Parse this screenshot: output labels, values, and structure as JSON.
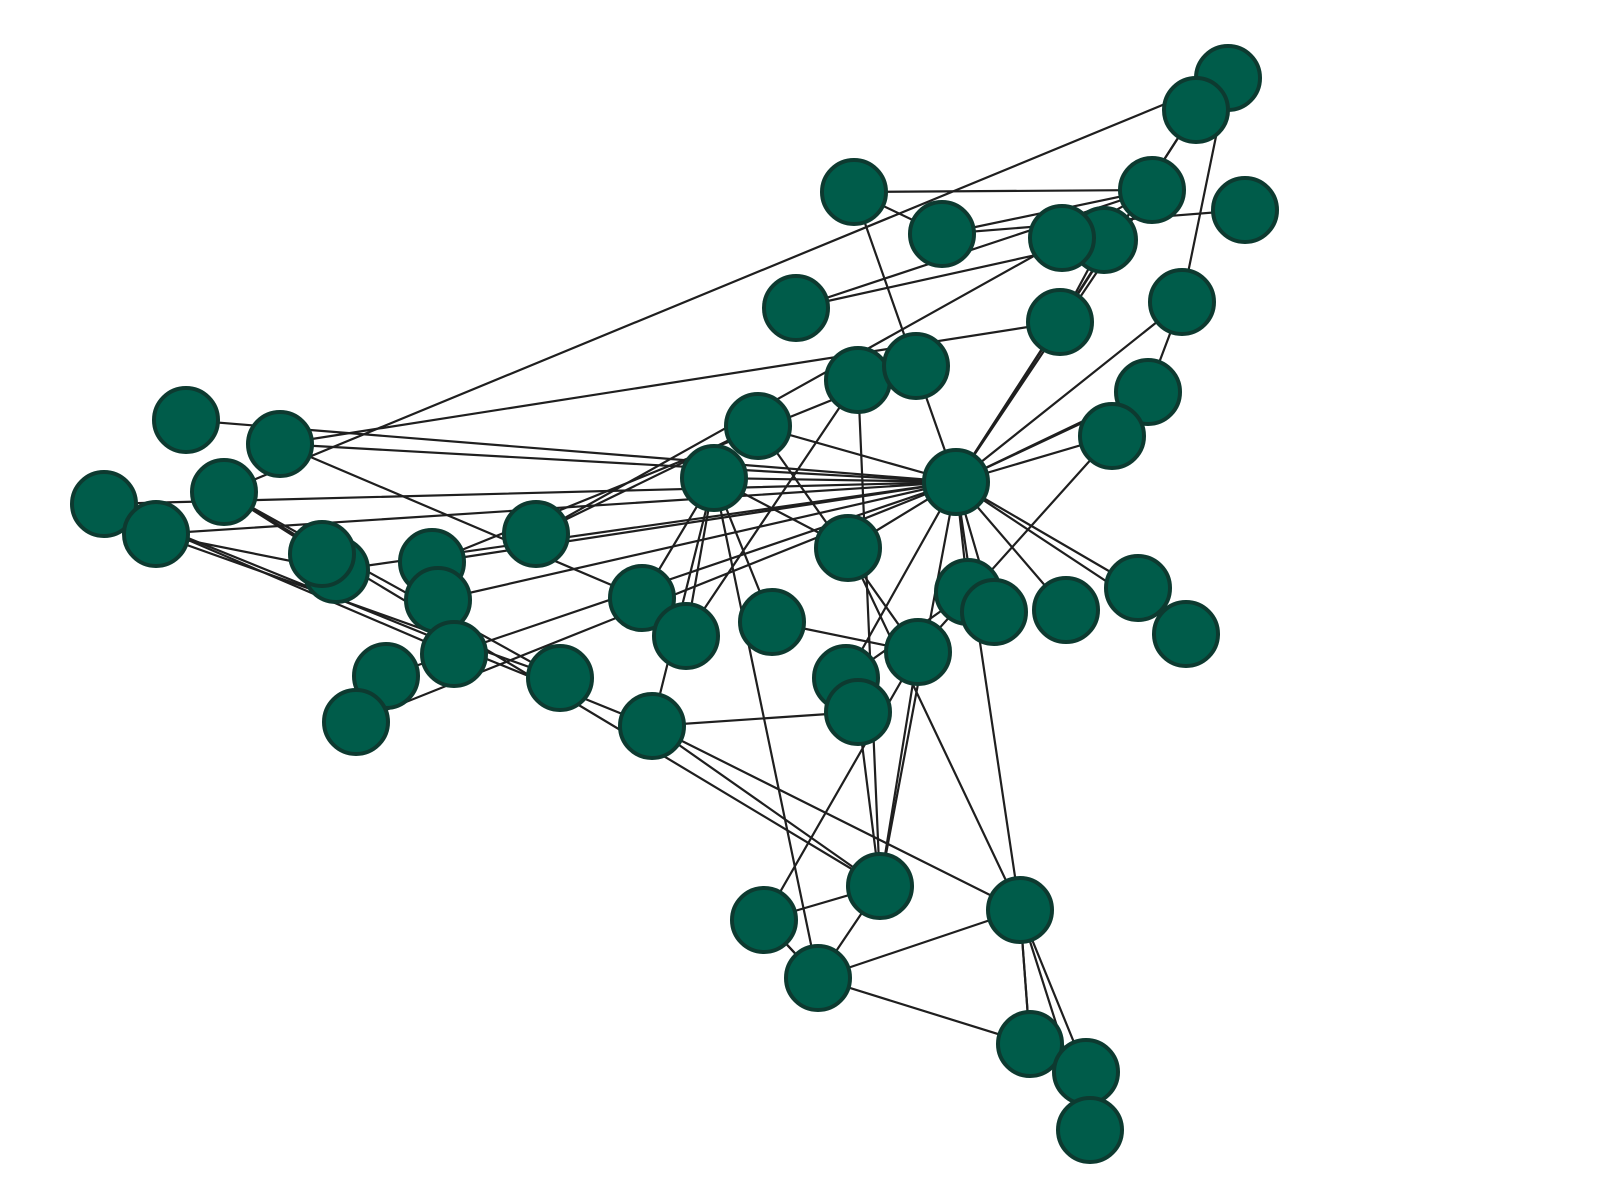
{
  "graph": {
    "style": {
      "background": "#ffffff",
      "node_fill": "#005c4a",
      "node_stroke": "#0d3a30",
      "edge_color": "#1f1f1f"
    },
    "nodes": [
      {
        "id": "n1"
      },
      {
        "id": "n2"
      },
      {
        "id": "n3"
      },
      {
        "id": "n4"
      },
      {
        "id": "n5"
      },
      {
        "id": "n6"
      },
      {
        "id": "n7"
      },
      {
        "id": "n8"
      },
      {
        "id": "n9"
      },
      {
        "id": "n10"
      },
      {
        "id": "n11"
      },
      {
        "id": "n12"
      },
      {
        "id": "n13"
      },
      {
        "id": "n14"
      },
      {
        "id": "n15"
      },
      {
        "id": "n16"
      },
      {
        "id": "n17"
      },
      {
        "id": "n18"
      },
      {
        "id": "n19"
      },
      {
        "id": "n20"
      },
      {
        "id": "n21"
      },
      {
        "id": "n22"
      },
      {
        "id": "n23"
      },
      {
        "id": "n24"
      },
      {
        "id": "n25"
      },
      {
        "id": "n26"
      },
      {
        "id": "n27"
      },
      {
        "id": "n28"
      },
      {
        "id": "n29"
      },
      {
        "id": "n30"
      },
      {
        "id": "n31"
      },
      {
        "id": "n32"
      },
      {
        "id": "n33"
      },
      {
        "id": "n34"
      },
      {
        "id": "n35"
      },
      {
        "id": "n36"
      },
      {
        "id": "n37"
      },
      {
        "id": "n38"
      },
      {
        "id": "n39"
      },
      {
        "id": "n40"
      },
      {
        "id": "n41"
      },
      {
        "id": "n42"
      },
      {
        "id": "n43"
      },
      {
        "id": "n44"
      },
      {
        "id": "n45"
      },
      {
        "id": "n46"
      },
      {
        "id": "n47"
      },
      {
        "id": "n48"
      },
      {
        "id": "n49"
      },
      {
        "id": "n50"
      },
      {
        "id": "n51"
      },
      {
        "id": "n52"
      },
      {
        "id": "n53"
      },
      {
        "id": "n54"
      },
      {
        "id": "n55"
      },
      {
        "id": "n56"
      },
      {
        "id": "n57"
      },
      {
        "id": "n58"
      },
      {
        "id": "n59"
      },
      {
        "id": "n60"
      },
      {
        "id": "n61"
      },
      {
        "id": "n62"
      }
    ],
    "edges": [
      [
        "n11",
        "n10"
      ],
      [
        "n6",
        "n1"
      ],
      [
        "n6",
        "n2"
      ],
      [
        "n6",
        "n3"
      ],
      [
        "n6",
        "n4"
      ],
      [
        "n2",
        "n14"
      ],
      [
        "n3",
        "n8"
      ],
      [
        "n8",
        "n9"
      ],
      [
        "n9",
        "n11"
      ],
      [
        "n10",
        "n12"
      ],
      [
        "n12",
        "n13"
      ],
      [
        "n10",
        "n16"
      ],
      [
        "n4",
        "n5"
      ],
      [
        "n4",
        "n7"
      ],
      [
        "n1",
        "n17"
      ],
      [
        "n1",
        "n19"
      ],
      [
        "n1",
        "n14"
      ],
      [
        "n1",
        "n20"
      ],
      [
        "n1",
        "n21"
      ],
      [
        "n1",
        "n22"
      ],
      [
        "n1",
        "n23"
      ],
      [
        "n1",
        "n25"
      ],
      [
        "n1",
        "n42"
      ],
      [
        "n1",
        "n43"
      ],
      [
        "n1",
        "n44"
      ],
      [
        "n1",
        "n45"
      ],
      [
        "n1",
        "n46"
      ],
      [
        "n1",
        "n47"
      ],
      [
        "n1",
        "n48"
      ],
      [
        "n1",
        "n18"
      ],
      [
        "n1",
        "n24"
      ],
      [
        "n1",
        "n29"
      ],
      [
        "n1",
        "n39"
      ],
      [
        "n1",
        "n33"
      ],
      [
        "n1",
        "n52"
      ],
      [
        "n19",
        "n26"
      ],
      [
        "n20",
        "n27"
      ],
      [
        "n18",
        "n28"
      ],
      [
        "n29",
        "n28"
      ],
      [
        "n29",
        "n31"
      ],
      [
        "n29",
        "n30"
      ],
      [
        "n29",
        "n33"
      ],
      [
        "n29",
        "n35"
      ],
      [
        "n29",
        "n41"
      ],
      [
        "n27",
        "n16"
      ],
      [
        "n16",
        "n56"
      ],
      [
        "n16",
        "n15"
      ],
      [
        "n24",
        "n34"
      ],
      [
        "n33",
        "n51"
      ],
      [
        "n51",
        "n53"
      ],
      [
        "n51",
        "n54"
      ],
      [
        "n51",
        "n57"
      ],
      [
        "n53",
        "n54"
      ],
      [
        "n51",
        "n55"
      ],
      [
        "n35",
        "n42"
      ],
      [
        "n42",
        "n41"
      ],
      [
        "n41",
        "n39"
      ],
      [
        "n39",
        "n35"
      ],
      [
        "n39",
        "n56"
      ],
      [
        "n56",
        "n58"
      ],
      [
        "n57",
        "n59"
      ],
      [
        "n58",
        "n59"
      ],
      [
        "n58",
        "n60"
      ],
      [
        "n59",
        "n60"
      ],
      [
        "n38",
        "n39"
      ],
      [
        "n38",
        "n31"
      ],
      [
        "n38",
        "n40"
      ],
      [
        "n36",
        "n37"
      ],
      [
        "n37",
        "n39"
      ],
      [
        "n37",
        "n35"
      ],
      [
        "n22",
        "n23"
      ],
      [
        "n6",
        "n5"
      ],
      [
        "n36",
        "n1"
      ],
      [
        "n12",
        "n1"
      ],
      [
        "n13",
        "n1"
      ],
      [
        "n9",
        "n1"
      ],
      [
        "n11",
        "n1"
      ],
      [
        "n5",
        "n1"
      ],
      [
        "n21",
        "n15"
      ],
      [
        "n32",
        "n39"
      ],
      [
        "n28",
        "n30"
      ],
      [
        "n30",
        "n32"
      ],
      [
        "n18",
        "n9"
      ],
      [
        "n48",
        "n38"
      ],
      [
        "n43",
        "n36"
      ],
      [
        "n14",
        "n38"
      ],
      [
        "n19",
        "n35"
      ],
      [
        "n20",
        "n21"
      ]
    ]
  }
}
